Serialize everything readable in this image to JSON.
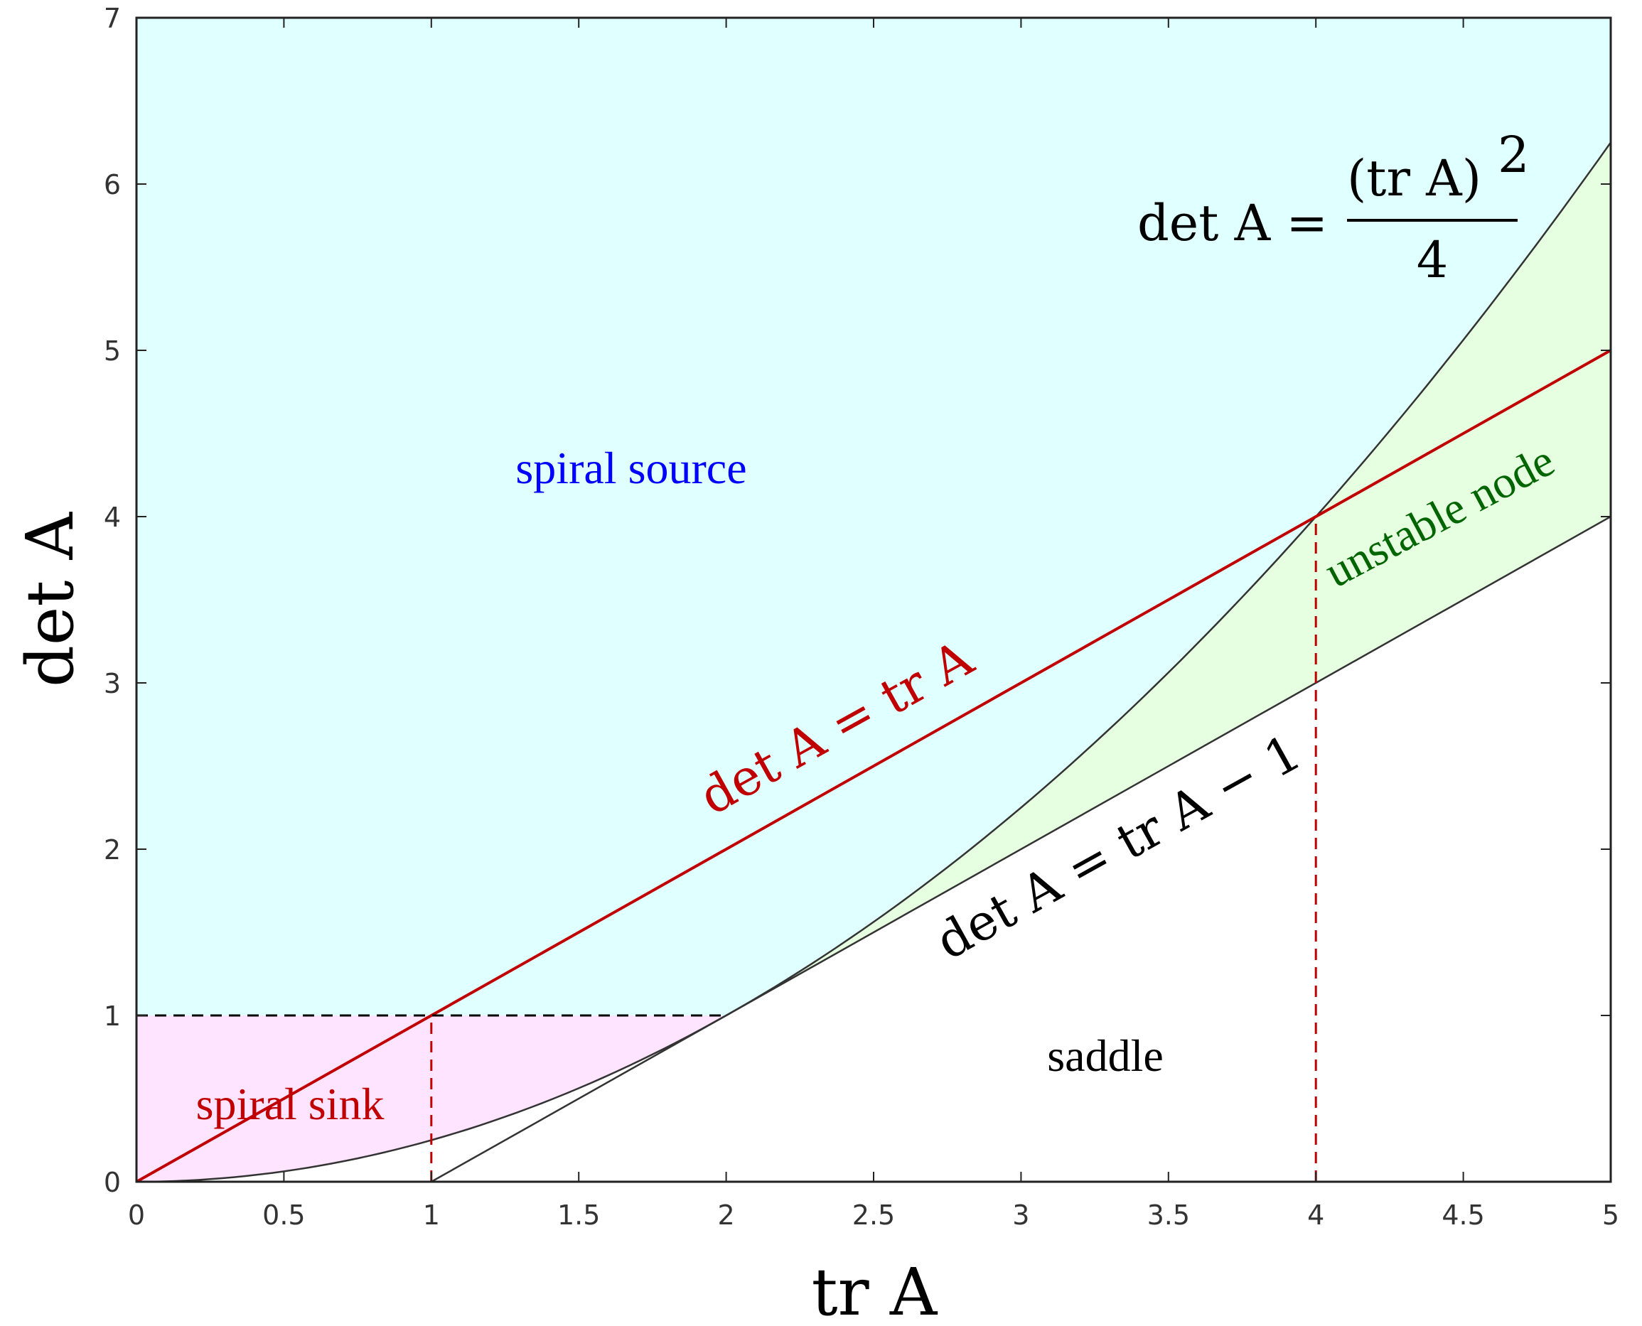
{
  "chart_data": {
    "type": "line",
    "xlabel": "tr A",
    "ylabel": "det A",
    "xlim": [
      0,
      5
    ],
    "ylim": [
      0,
      7
    ],
    "x_ticks": [
      "0",
      "0.5",
      "1",
      "1.5",
      "2",
      "2.5",
      "3",
      "3.5",
      "4",
      "4.5",
      "5"
    ],
    "y_ticks": [
      "0",
      "1",
      "2",
      "3",
      "4",
      "5",
      "6",
      "7"
    ],
    "grid": false,
    "series": [
      {
        "name": "det A = (tr A)^2 / 4",
        "x": [
          0,
          0.5,
          1,
          1.5,
          2,
          2.5,
          3,
          3.5,
          4,
          4.5,
          5
        ],
        "y": [
          0,
          0.0625,
          0.25,
          0.5625,
          1,
          1.5625,
          2.25,
          3.0625,
          4,
          5.0625,
          6.25
        ],
        "color": "#333333"
      },
      {
        "name": "det A = tr A",
        "x": [
          0,
          5
        ],
        "y": [
          0,
          5
        ],
        "color": "#c00000"
      },
      {
        "name": "det A = tr A − 1",
        "x": [
          1,
          5
        ],
        "y": [
          0,
          4
        ],
        "color": "#333333"
      },
      {
        "name": "det A = 1",
        "x": [
          0,
          2
        ],
        "y": [
          1,
          1
        ],
        "style": "dashed",
        "color": "#000000"
      },
      {
        "name": "tr A = 1",
        "x": [
          1,
          1
        ],
        "y": [
          0,
          1
        ],
        "style": "dashed",
        "color": "#c00000"
      },
      {
        "name": "tr A = 4",
        "x": [
          4,
          4
        ],
        "y": [
          0,
          4
        ],
        "style": "dashed",
        "color": "#c00000"
      }
    ],
    "regions": [
      {
        "label": "spiral source",
        "color": "#e0ffff",
        "label_color": "#0000ff"
      },
      {
        "label": "spiral sink",
        "color": "#ffe4ff",
        "label_color": "#c00000"
      },
      {
        "label": "unstable node",
        "color": "#e6ffe0",
        "label_color": "#006400"
      },
      {
        "label": "saddle",
        "color": "#ffffff",
        "label_color": "#000000"
      }
    ],
    "annotations": {
      "parabola": {
        "lhs": "det A =",
        "numerator": "(tr A)",
        "exponent": "2",
        "denominator": "4"
      },
      "line_tr": "det A = tr A",
      "line_tr_minus_1": "det A = tr A − 1"
    }
  }
}
